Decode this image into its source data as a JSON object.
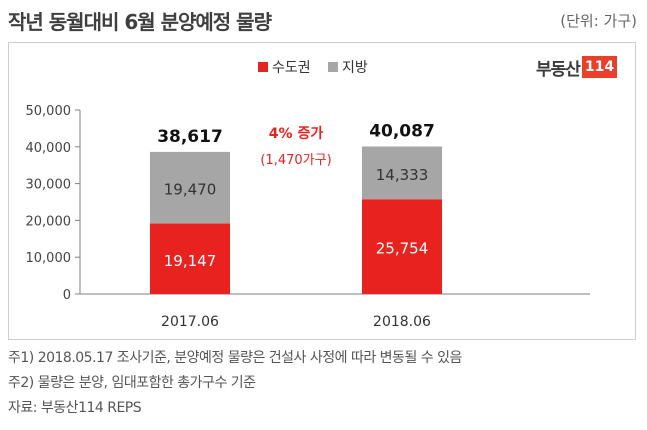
{
  "header": {
    "title": "작년 동월대비 6월 분양예정 물량",
    "unit": "(단위: 가구)"
  },
  "logo": {
    "brand": "부동산",
    "num": "114"
  },
  "chart_data": {
    "type": "bar",
    "stacked": true,
    "categories": [
      "2017.06",
      "2018.06"
    ],
    "series": [
      {
        "name": "수도권",
        "values": [
          19147,
          25754
        ],
        "labels": [
          "19,147",
          "25,754"
        ],
        "color": "#e8231f"
      },
      {
        "name": "지방",
        "values": [
          19470,
          14333
        ],
        "labels": [
          "19,470",
          "14,333"
        ],
        "color": "#a6a6a6"
      }
    ],
    "totals": [
      38617,
      40087
    ],
    "total_labels": [
      "38,617",
      "40,087"
    ],
    "ylim": [
      0,
      50000
    ],
    "yticks": [
      0,
      10000,
      20000,
      30000,
      40000,
      50000
    ],
    "ytick_labels": [
      "0",
      "10,000",
      "20,000",
      "30,000",
      "40,000",
      "50,000"
    ],
    "legend_position": "top-center",
    "annotation": {
      "line1": "4% 증가",
      "line2": "(1,470가구)",
      "color": "#e8231f"
    }
  },
  "notes": [
    "주1) 2018.05.17 조사기준, 분양예정 물량은 건설사 사정에 따라 변동될 수 있음",
    "주2) 물량은 분양, 임대포함한 총가구수 기준",
    "자료: 부동산114 REPS"
  ]
}
